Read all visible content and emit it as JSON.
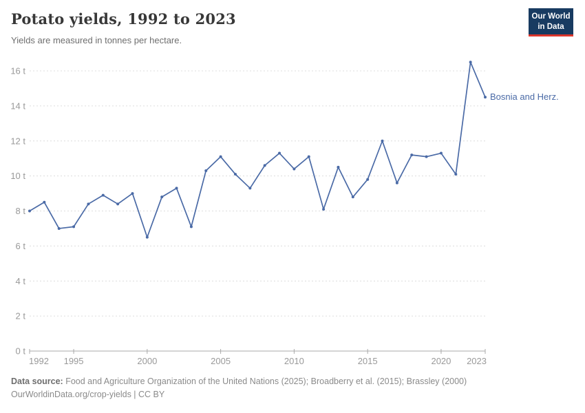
{
  "header": {
    "title": "Potato yields, 1992 to 2023",
    "subtitle": "Yields are measured in tonnes per hectare.",
    "logo": {
      "line1": "Our World",
      "line2": "in Data"
    }
  },
  "chart_data": {
    "type": "line",
    "title": "Potato yields, 1992 to 2023",
    "ylabel": "tonnes per hectare",
    "unit": "t",
    "grid": true,
    "legend_position": "end-of-line",
    "xlim": [
      1992,
      2023
    ],
    "ylim": [
      0,
      16
    ],
    "x_ticks": [
      1992,
      1995,
      2000,
      2005,
      2010,
      2015,
      2020,
      2023
    ],
    "y_ticks": [
      0,
      2,
      4,
      6,
      8,
      10,
      12,
      14,
      16
    ],
    "x": [
      1992,
      1993,
      1994,
      1995,
      1996,
      1997,
      1998,
      1999,
      2000,
      2001,
      2002,
      2003,
      2004,
      2005,
      2006,
      2007,
      2008,
      2009,
      2010,
      2011,
      2012,
      2013,
      2014,
      2015,
      2016,
      2017,
      2018,
      2019,
      2020,
      2021,
      2022,
      2023
    ],
    "series": [
      {
        "name": "Bosnia and Herz.",
        "color": "#4a6aa6",
        "values": [
          8.0,
          8.5,
          7.0,
          7.1,
          8.4,
          8.9,
          8.4,
          9.0,
          6.5,
          8.8,
          9.3,
          7.1,
          10.3,
          11.1,
          10.1,
          9.3,
          10.6,
          11.3,
          10.4,
          11.1,
          8.1,
          10.5,
          8.8,
          9.8,
          12.0,
          9.6,
          11.2,
          11.1,
          11.3,
          10.1,
          16.5,
          14.5
        ]
      }
    ]
  },
  "colors": {
    "line": "#4a6aa6",
    "grid": "#dcdcdc",
    "axis": "#a8a8a8",
    "tick_text": "#999999",
    "logo_bg": "#183b61",
    "logo_accent": "#dc362c"
  },
  "footer": {
    "source_label": "Data source:",
    "source_text": " Food and Agriculture Organization of the United Nations (2025); Broadberry et al. (2015); Brassley (2000)",
    "license_line": "OurWorldinData.org/crop-yields | CC BY"
  }
}
